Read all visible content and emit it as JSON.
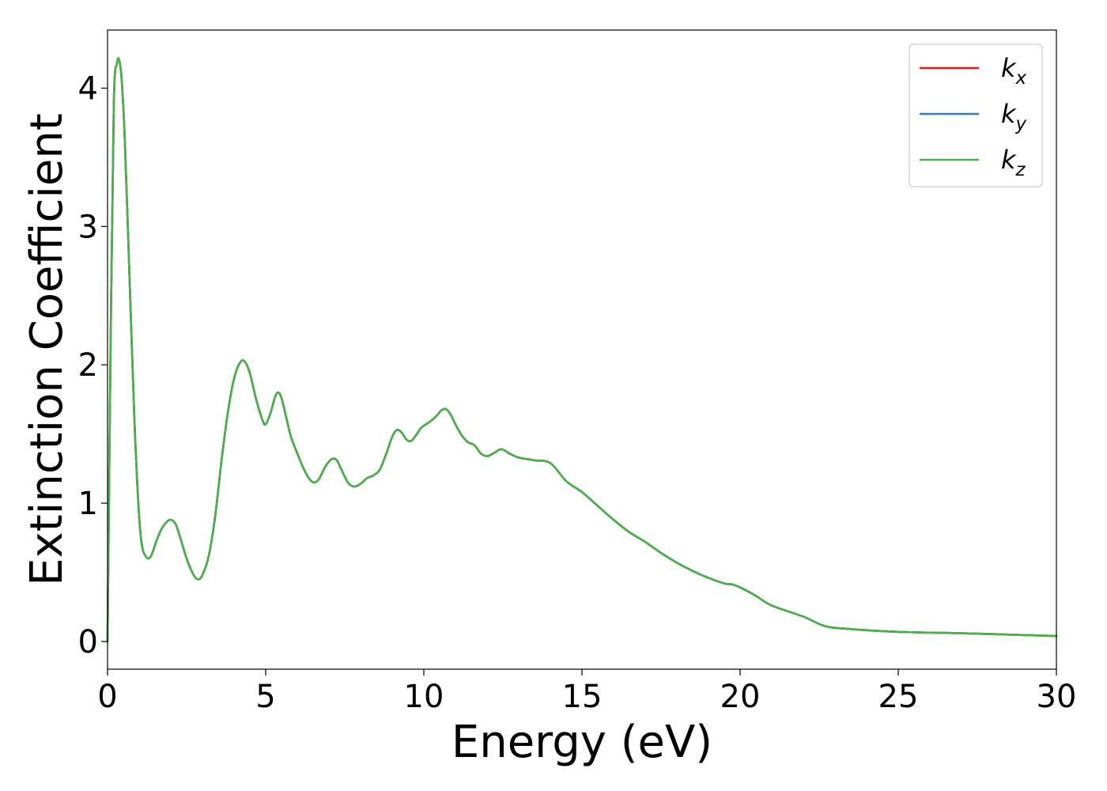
{
  "chart_data": {
    "type": "line",
    "title": "",
    "xlabel": "Energy (eV)",
    "ylabel": "Extinction Coefficient",
    "xlim": [
      0,
      30
    ],
    "ylim": [
      -0.2,
      4.42
    ],
    "xticks": [
      0,
      5,
      10,
      15,
      20,
      25,
      30
    ],
    "yticks": [
      0,
      1,
      2,
      3,
      4
    ],
    "grid": false,
    "legend_position": "top-right",
    "series": [
      {
        "name": "k_x",
        "legend_base": "k",
        "legend_sub": "x",
        "color": "#e41a1c",
        "x": [
          0,
          0.1,
          0.2,
          0.3,
          0.37,
          0.45,
          0.55,
          0.7,
          0.85,
          1.0,
          1.1,
          1.2,
          1.3,
          1.4,
          1.55,
          1.7,
          1.85,
          2.0,
          2.15,
          2.3,
          2.5,
          2.7,
          2.85,
          3.0,
          3.2,
          3.4,
          3.6,
          3.8,
          4.0,
          4.2,
          4.35,
          4.5,
          4.7,
          4.9,
          5.0,
          5.15,
          5.3,
          5.4,
          5.5,
          5.65,
          5.8,
          6.0,
          6.2,
          6.4,
          6.55,
          6.7,
          6.9,
          7.1,
          7.25,
          7.4,
          7.6,
          7.8,
          8.0,
          8.2,
          8.4,
          8.6,
          8.8,
          9.0,
          9.15,
          9.3,
          9.45,
          9.6,
          9.75,
          9.9,
          10.0,
          10.2,
          10.4,
          10.55,
          10.7,
          10.85,
          11.0,
          11.2,
          11.4,
          11.6,
          11.8,
          12.0,
          12.2,
          12.45,
          12.7,
          13.0,
          13.5,
          14.0,
          14.5,
          15.0,
          15.5,
          16.0,
          16.5,
          17.0,
          17.5,
          18.0,
          18.5,
          19.0,
          19.5,
          19.8,
          20.1,
          20.5,
          21.0,
          22.0,
          22.7,
          23.5,
          25.0,
          27.0,
          28.5,
          30.0
        ],
        "y": [
          0.0,
          2.2,
          3.9,
          4.18,
          4.2,
          4.05,
          3.6,
          2.6,
          1.6,
          0.9,
          0.68,
          0.62,
          0.6,
          0.63,
          0.73,
          0.81,
          0.86,
          0.88,
          0.85,
          0.75,
          0.6,
          0.49,
          0.45,
          0.48,
          0.62,
          0.9,
          1.3,
          1.65,
          1.9,
          2.02,
          2.02,
          1.94,
          1.75,
          1.6,
          1.57,
          1.65,
          1.77,
          1.8,
          1.76,
          1.62,
          1.48,
          1.36,
          1.25,
          1.17,
          1.15,
          1.18,
          1.27,
          1.32,
          1.31,
          1.24,
          1.15,
          1.12,
          1.14,
          1.18,
          1.2,
          1.24,
          1.35,
          1.48,
          1.53,
          1.51,
          1.46,
          1.45,
          1.49,
          1.54,
          1.56,
          1.59,
          1.63,
          1.67,
          1.68,
          1.64,
          1.57,
          1.49,
          1.44,
          1.42,
          1.36,
          1.34,
          1.36,
          1.39,
          1.36,
          1.33,
          1.31,
          1.29,
          1.16,
          1.08,
          0.98,
          0.88,
          0.79,
          0.72,
          0.64,
          0.57,
          0.51,
          0.46,
          0.42,
          0.41,
          0.38,
          0.33,
          0.26,
          0.18,
          0.11,
          0.09,
          0.07,
          0.06,
          0.05,
          0.04
        ]
      },
      {
        "name": "k_y",
        "legend_base": "k",
        "legend_sub": "y",
        "color": "#377eb8",
        "x": [
          0,
          0.1,
          0.2,
          0.3,
          0.37,
          0.45,
          0.55,
          0.7,
          0.85,
          1.0,
          1.1,
          1.2,
          1.3,
          1.4,
          1.55,
          1.7,
          1.85,
          2.0,
          2.15,
          2.3,
          2.5,
          2.7,
          2.85,
          3.0,
          3.2,
          3.4,
          3.6,
          3.8,
          4.0,
          4.2,
          4.35,
          4.5,
          4.7,
          4.9,
          5.0,
          5.15,
          5.3,
          5.4,
          5.5,
          5.65,
          5.8,
          6.0,
          6.2,
          6.4,
          6.55,
          6.7,
          6.9,
          7.1,
          7.25,
          7.4,
          7.6,
          7.8,
          8.0,
          8.2,
          8.4,
          8.6,
          8.8,
          9.0,
          9.15,
          9.3,
          9.45,
          9.6,
          9.75,
          9.9,
          10.0,
          10.2,
          10.4,
          10.55,
          10.7,
          10.85,
          11.0,
          11.2,
          11.4,
          11.6,
          11.8,
          12.0,
          12.2,
          12.45,
          12.7,
          13.0,
          13.5,
          14.0,
          14.5,
          15.0,
          15.5,
          16.0,
          16.5,
          17.0,
          17.5,
          18.0,
          18.5,
          19.0,
          19.5,
          19.8,
          20.1,
          20.5,
          21.0,
          22.0,
          22.7,
          23.5,
          25.0,
          27.0,
          28.5,
          30.0
        ],
        "y": [
          0.0,
          2.2,
          3.9,
          4.18,
          4.2,
          4.05,
          3.6,
          2.6,
          1.6,
          0.9,
          0.68,
          0.62,
          0.6,
          0.63,
          0.73,
          0.81,
          0.86,
          0.88,
          0.85,
          0.75,
          0.6,
          0.49,
          0.45,
          0.48,
          0.62,
          0.9,
          1.3,
          1.65,
          1.9,
          2.02,
          2.02,
          1.94,
          1.75,
          1.6,
          1.57,
          1.65,
          1.77,
          1.8,
          1.76,
          1.62,
          1.48,
          1.36,
          1.25,
          1.17,
          1.15,
          1.18,
          1.27,
          1.32,
          1.31,
          1.24,
          1.15,
          1.12,
          1.14,
          1.18,
          1.2,
          1.24,
          1.35,
          1.48,
          1.53,
          1.51,
          1.46,
          1.45,
          1.49,
          1.54,
          1.56,
          1.59,
          1.63,
          1.67,
          1.68,
          1.64,
          1.57,
          1.49,
          1.44,
          1.42,
          1.36,
          1.34,
          1.36,
          1.39,
          1.36,
          1.33,
          1.31,
          1.29,
          1.16,
          1.08,
          0.98,
          0.88,
          0.79,
          0.72,
          0.64,
          0.57,
          0.51,
          0.46,
          0.42,
          0.41,
          0.38,
          0.33,
          0.26,
          0.18,
          0.11,
          0.09,
          0.07,
          0.06,
          0.05,
          0.04
        ]
      },
      {
        "name": "k_z",
        "legend_base": "k",
        "legend_sub": "z",
        "color": "#4daf4a",
        "x": [
          0,
          0.1,
          0.2,
          0.3,
          0.37,
          0.45,
          0.55,
          0.7,
          0.85,
          1.0,
          1.1,
          1.2,
          1.3,
          1.4,
          1.55,
          1.7,
          1.85,
          2.0,
          2.15,
          2.3,
          2.5,
          2.7,
          2.85,
          3.0,
          3.2,
          3.4,
          3.6,
          3.8,
          4.0,
          4.2,
          4.35,
          4.5,
          4.7,
          4.9,
          5.0,
          5.15,
          5.3,
          5.4,
          5.5,
          5.65,
          5.8,
          6.0,
          6.2,
          6.4,
          6.55,
          6.7,
          6.9,
          7.1,
          7.25,
          7.4,
          7.6,
          7.8,
          8.0,
          8.2,
          8.4,
          8.6,
          8.8,
          9.0,
          9.15,
          9.3,
          9.45,
          9.6,
          9.75,
          9.9,
          10.0,
          10.2,
          10.4,
          10.55,
          10.7,
          10.85,
          11.0,
          11.2,
          11.4,
          11.6,
          11.8,
          12.0,
          12.2,
          12.45,
          12.7,
          13.0,
          13.5,
          14.0,
          14.5,
          15.0,
          15.5,
          16.0,
          16.5,
          17.0,
          17.5,
          18.0,
          18.5,
          19.0,
          19.5,
          19.8,
          20.1,
          20.5,
          21.0,
          22.0,
          22.7,
          23.5,
          25.0,
          27.0,
          28.5,
          30.0
        ],
        "y": [
          0.0,
          2.2,
          3.9,
          4.18,
          4.2,
          4.05,
          3.6,
          2.6,
          1.6,
          0.9,
          0.68,
          0.62,
          0.6,
          0.63,
          0.73,
          0.81,
          0.86,
          0.88,
          0.85,
          0.75,
          0.6,
          0.49,
          0.45,
          0.48,
          0.62,
          0.9,
          1.3,
          1.65,
          1.9,
          2.02,
          2.02,
          1.94,
          1.75,
          1.6,
          1.57,
          1.65,
          1.77,
          1.8,
          1.76,
          1.62,
          1.48,
          1.36,
          1.25,
          1.17,
          1.15,
          1.18,
          1.27,
          1.32,
          1.31,
          1.24,
          1.15,
          1.12,
          1.14,
          1.18,
          1.2,
          1.24,
          1.35,
          1.48,
          1.53,
          1.51,
          1.46,
          1.45,
          1.49,
          1.54,
          1.56,
          1.59,
          1.63,
          1.67,
          1.68,
          1.64,
          1.57,
          1.49,
          1.44,
          1.42,
          1.36,
          1.34,
          1.36,
          1.39,
          1.36,
          1.33,
          1.31,
          1.29,
          1.16,
          1.08,
          0.98,
          0.88,
          0.79,
          0.72,
          0.64,
          0.57,
          0.51,
          0.46,
          0.42,
          0.41,
          0.38,
          0.33,
          0.26,
          0.18,
          0.11,
          0.09,
          0.07,
          0.06,
          0.05,
          0.04
        ]
      }
    ]
  }
}
